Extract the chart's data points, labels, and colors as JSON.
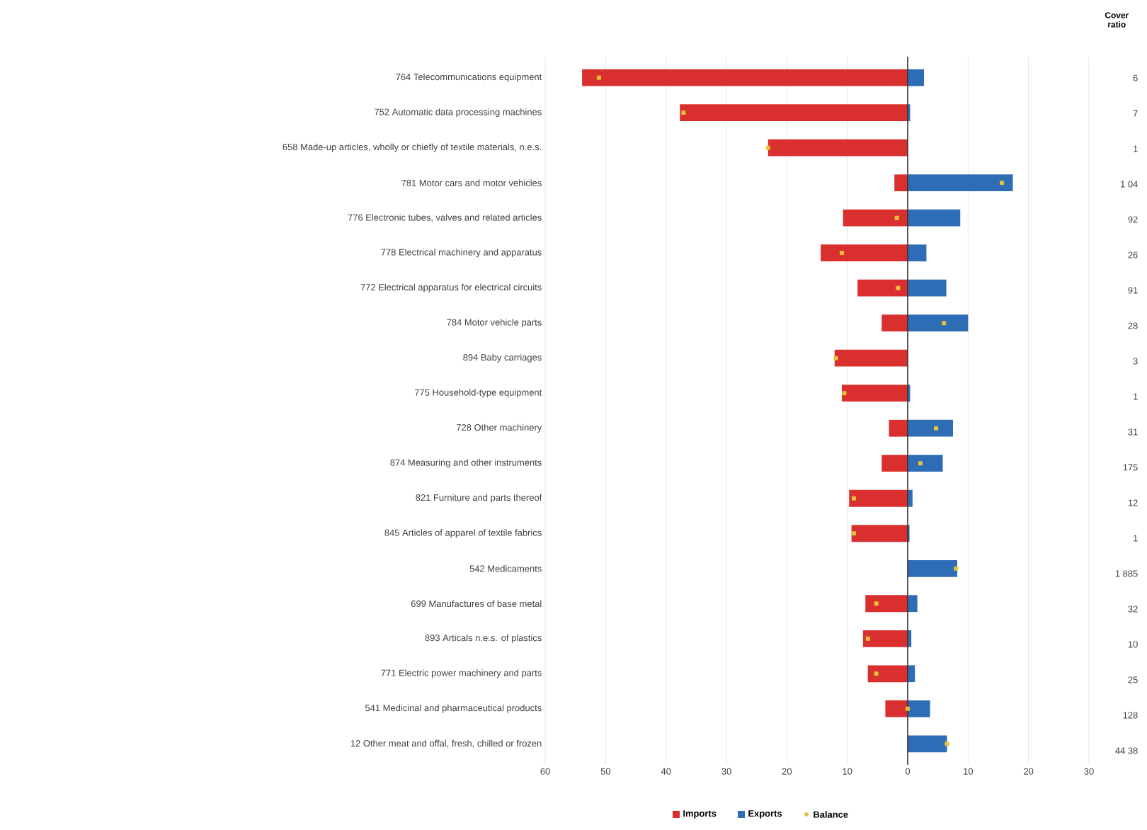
{
  "chart_data": {
    "type": "bar",
    "orientation": "horizontal",
    "categories": [
      "764 Telecommunications equipment",
      "752 Automatic data processing machines",
      "658 Made-up articles, wholly or chiefly of textile materials, n.e.s.",
      "781 Motor cars and motor vehicles",
      "776 Electronic tubes, valves and related articles",
      "778 Electrical machinery and apparatus",
      "772 Electrical apparatus for electrical circuits",
      "784 Motor vehicle parts",
      "894 Baby carriages",
      "775 Household-type equipment",
      "728 Other machinery",
      "874 Measuring and other instruments",
      "821 Furniture and parts thereof",
      "845 Articles of apparel of textile fabrics",
      "542 Medicaments",
      "699 Manufactures of base metal",
      "893 Articals n.e.s. of plastics",
      "771 Electric power machinery and parts",
      "541 Medicinal and pharmaceutical products",
      "12 Other meat and offal, fresh, chilled or frozen"
    ],
    "series": [
      {
        "name": "Imports",
        "color": "#d9302f",
        "values": [
          -53.9,
          -37.7,
          -23.1,
          -2.2,
          -10.7,
          -14.4,
          -8.3,
          -4.3,
          -12.1,
          -10.9,
          -3.1,
          -4.3,
          -9.7,
          -9.3,
          null,
          -7.0,
          -7.4,
          -6.6,
          -3.7,
          null
        ]
      },
      {
        "name": "Exports",
        "color": "#2e6cb5",
        "values": [
          2.7,
          0.4,
          null,
          17.4,
          8.7,
          3.1,
          6.4,
          10.0,
          null,
          0.4,
          7.5,
          5.8,
          0.8,
          0.3,
          8.2,
          1.6,
          0.6,
          1.2,
          3.7,
          6.5
        ]
      },
      {
        "name": "Balance",
        "type": "scatter",
        "color": "#e8c23a",
        "values": [
          -51.1,
          -37.1,
          -23.1,
          15.6,
          -1.8,
          -10.9,
          -1.6,
          6.0,
          -11.9,
          -10.5,
          4.7,
          2.1,
          -8.9,
          -8.9,
          8.0,
          -5.2,
          -6.6,
          -5.2,
          0.0,
          6.5
        ]
      }
    ],
    "xlim": [
      -60,
      30
    ],
    "xticks": [
      {
        "value": -60,
        "label": "60"
      },
      {
        "value": -50,
        "label": "50"
      },
      {
        "value": -40,
        "label": "40"
      },
      {
        "value": -30,
        "label": "30"
      },
      {
        "value": -20,
        "label": "20"
      },
      {
        "value": -10,
        "label": "10"
      },
      0,
      10,
      20,
      30
    ],
    "grid": "x",
    "legend": "bottom",
    "stacked": true,
    "marker": "square",
    "annotations": [
      "Cover ratio",
      "6",
      "7",
      "1",
      "1 04",
      "92",
      "26",
      "91",
      "28",
      "3",
      "1",
      "31",
      "175",
      "12",
      "1",
      "1 885",
      "32",
      "10",
      "25",
      "128",
      "44 38"
    ]
  }
}
